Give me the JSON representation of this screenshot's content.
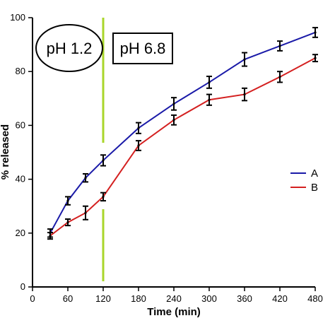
{
  "chart_data": {
    "type": "line",
    "xlabel": "Time (min)",
    "ylabel": "% released",
    "x_ticks": [
      0,
      60,
      120,
      180,
      240,
      300,
      360,
      420,
      480
    ],
    "y_ticks": [
      0,
      20,
      40,
      60,
      80,
      100
    ],
    "xlim": [
      0,
      480
    ],
    "ylim": [
      0,
      100
    ],
    "grid": false,
    "legend_position": "right",
    "series": [
      {
        "name": "A",
        "color": "#1a1aa8",
        "x": [
          30,
          60,
          90,
          120,
          180,
          240,
          300,
          360,
          420,
          480
        ],
        "y": [
          20.0,
          32.0,
          40.5,
          47.0,
          59.0,
          68.0,
          76.0,
          84.5,
          89.5,
          94.5
        ],
        "error": [
          1.5,
          1.5,
          1.5,
          2.0,
          2.0,
          2.3,
          2.2,
          2.5,
          1.8,
          1.8
        ]
      },
      {
        "name": "B",
        "color": "#d42020",
        "x": [
          30,
          60,
          90,
          120,
          180,
          240,
          300,
          360,
          420,
          480
        ],
        "y": [
          19.0,
          24.0,
          27.5,
          33.5,
          52.5,
          62.0,
          69.5,
          71.5,
          78.0,
          85.0
        ],
        "error": [
          1.2,
          1.2,
          2.5,
          1.5,
          1.8,
          1.8,
          2.0,
          2.3,
          2.0,
          1.3
        ]
      }
    ],
    "reference_line": {
      "x": 120,
      "color": "#a9d62a"
    },
    "annotations": {
      "left": "pH 1.2",
      "right": "pH 6.8"
    }
  }
}
